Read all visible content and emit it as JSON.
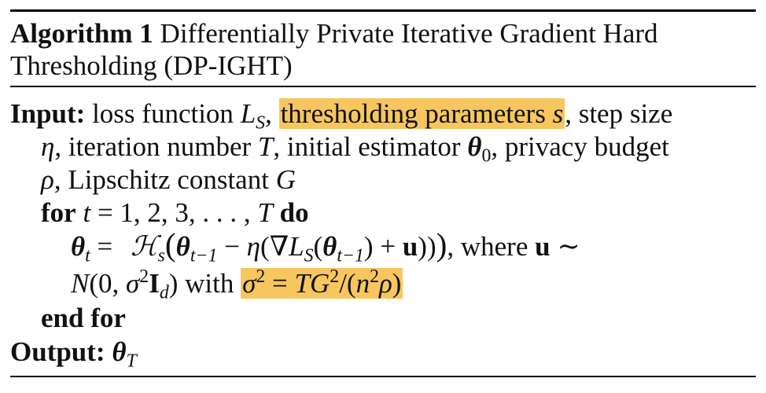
{
  "algorithm": {
    "label": "Algorithm 1",
    "title_line1": "Differentially Private Iterative Gradient Hard",
    "title_line2": "Thresholding (DP-IGHT)"
  },
  "input": {
    "keyword": "Input:",
    "l1_a": "loss function ",
    "l1_L": "L",
    "l1_S": "S",
    "l1_comma": ", ",
    "l1_hl": "thresholding parameters ",
    "l1_s": "s",
    "l1_rest": ", step size",
    "l2_eta": "η",
    "l2_a": ", iteration number ",
    "l2_T": "T",
    "l2_b": ", initial estimator ",
    "l2_theta": "θ",
    "l2_0": "0",
    "l2_c": ", privacy budget",
    "l3_rho": "ρ",
    "l3_a": ", Lipschitz constant ",
    "l3_G": "G"
  },
  "for_line": {
    "kw_for": "for",
    "t": "t",
    "range": " = 1, 2, 3, . . . , ",
    "T": "T",
    "kw_do": "do"
  },
  "update": {
    "theta": "θ",
    "t": "t",
    "eq": " = ",
    "H": "ℋ",
    "s": "s",
    "lparen": "(",
    "theta2": "θ",
    "tm1": "t−1",
    "minus": " − ",
    "eta": "η",
    "grad": "(∇",
    "L": "L",
    "S": "S",
    "lp": "(",
    "theta3": "θ",
    "tm1b": "t−1",
    "plus": ") + ",
    "u": "u",
    "close": "))",
    "rparen": ")",
    "where": ",  where  ",
    "u2": "u",
    "sim": "  ∼"
  },
  "noise": {
    "N": "N",
    "args": "(0, ",
    "sigma": "σ",
    "two": "2",
    "I": "I",
    "d": "d",
    "close": ") with ",
    "hl_sigma": "σ",
    "hl_2": "2",
    "hl_eq": " = ",
    "hl_TG": "TG",
    "hl_2b": "2",
    "hl_slash": "/(",
    "hl_n": "n",
    "hl_2c": "2",
    "hl_rho": "ρ",
    "hl_close": ")"
  },
  "end_for": "end for",
  "output": {
    "keyword": "Output:",
    "theta": "θ",
    "T": "T"
  },
  "colors": {
    "highlight": "#f7c65f",
    "rule": "#000000"
  }
}
